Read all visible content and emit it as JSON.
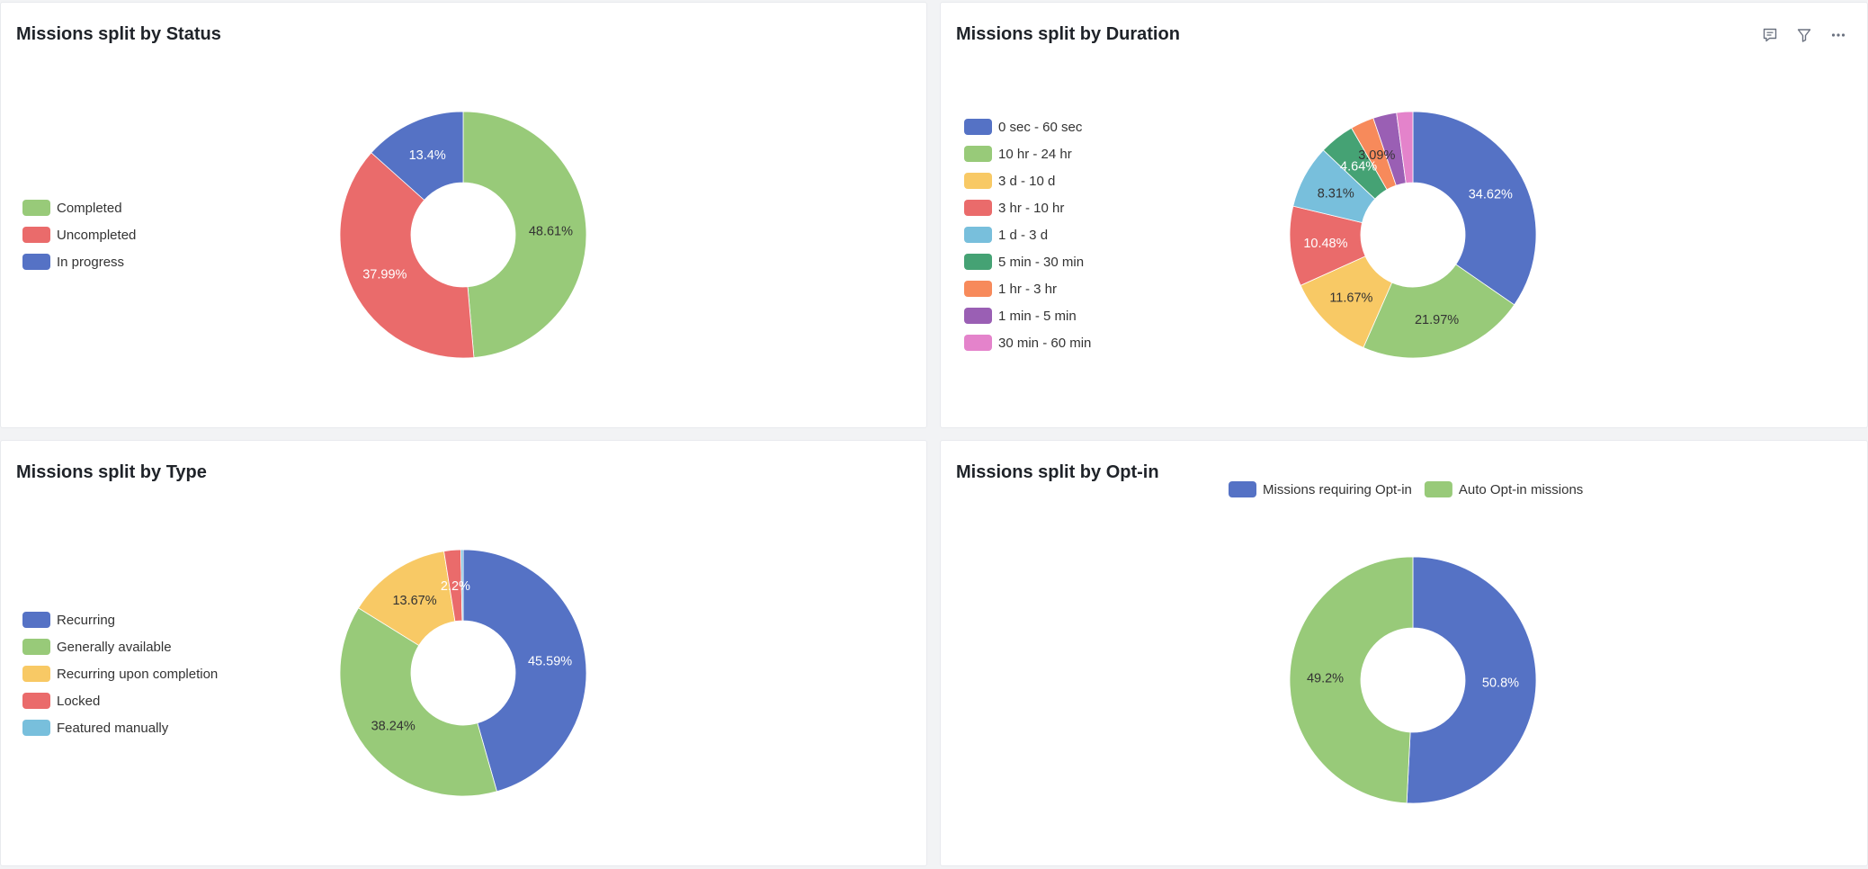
{
  "panels": [
    {
      "id": "status",
      "title": "Missions split by Status",
      "legend_position": "left",
      "chart_data": {
        "type": "pie",
        "donut": true,
        "title": "Missions split by Status",
        "categories": [
          "Completed",
          "Uncompleted",
          "In progress"
        ],
        "values": [
          48.61,
          37.99,
          13.4
        ],
        "labels": [
          "48.61%",
          "37.99%",
          "13.4%"
        ],
        "colors": [
          "#98ca79",
          "#ea6b6b",
          "#5572c5"
        ],
        "legend": "left"
      }
    },
    {
      "id": "duration",
      "title": "Missions split by Duration",
      "legend_position": "left",
      "chart_data": {
        "type": "pie",
        "donut": true,
        "title": "Missions split by Duration",
        "categories": [
          "0 sec - 60 sec",
          "10 hr - 24 hr",
          "3 d - 10 d",
          "3 hr - 10 hr",
          "1 d - 3 d",
          "5 min - 30 min",
          "1 hr - 3 hr",
          "1 min - 5 min",
          "30 min - 60 min"
        ],
        "values": [
          34.62,
          21.97,
          11.67,
          10.48,
          8.31,
          4.64,
          3.09,
          3.09,
          2.13
        ],
        "labels": [
          "34.62%",
          "21.97%",
          "11.67%",
          "10.48%",
          "8.31%",
          "4.64%",
          "3.09%",
          "",
          ""
        ],
        "colors": [
          "#5572c5",
          "#98ca79",
          "#f8c965",
          "#ea6b6b",
          "#78bfdc",
          "#45a274",
          "#f78a5b",
          "#9a5fb4",
          "#e483cb"
        ],
        "legend": "left"
      }
    },
    {
      "id": "type",
      "title": "Missions split by Type",
      "legend_position": "left",
      "chart_data": {
        "type": "pie",
        "donut": true,
        "title": "Missions split by Type",
        "categories": [
          "Recurring",
          "Generally available",
          "Recurring upon completion",
          "Locked",
          "Featured manually"
        ],
        "values": [
          45.59,
          38.24,
          13.67,
          2.2,
          0.3
        ],
        "labels": [
          "45.59%",
          "38.24%",
          "13.67%",
          "2.2%",
          ""
        ],
        "colors": [
          "#5572c5",
          "#98ca79",
          "#f8c965",
          "#ea6b6b",
          "#78bfdc"
        ],
        "legend": "left"
      }
    },
    {
      "id": "optin",
      "title": "Missions split by Opt-in",
      "legend_position": "top",
      "chart_data": {
        "type": "pie",
        "donut": true,
        "title": "Missions split by Opt-in",
        "categories": [
          "Missions requiring Opt-in",
          "Auto Opt-in missions"
        ],
        "values": [
          50.8,
          49.2
        ],
        "labels": [
          "50.8%",
          "49.2%"
        ],
        "colors": [
          "#5572c5",
          "#98ca79"
        ],
        "legend": "top"
      }
    }
  ],
  "toolbar": {
    "icons": [
      "comment-icon",
      "filter-icon",
      "more-icon"
    ]
  }
}
